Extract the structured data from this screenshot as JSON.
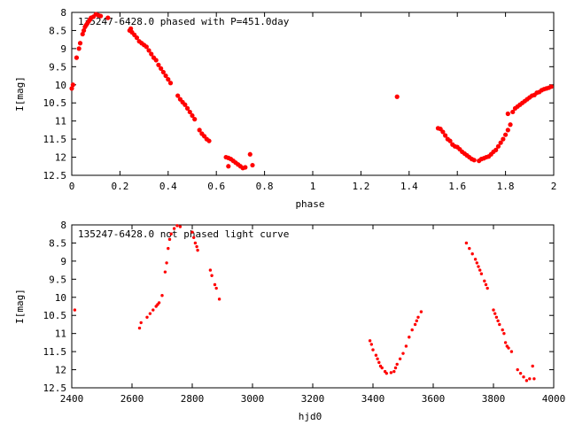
{
  "chart_data": [
    {
      "type": "scatter",
      "title": "135247-6428.0 phased with P=451.0day",
      "xlabel": "phase",
      "ylabel": "I[mag]",
      "xlim": [
        0,
        2
      ],
      "ylim": [
        12.5,
        8
      ],
      "x_ticks": [
        "0",
        "0.2",
        "0.4",
        "0.6",
        "0.8",
        "1",
        "1.2",
        "1.4",
        "1.6",
        "1.8",
        "2"
      ],
      "y_ticks": [
        "8",
        "8.5",
        "9",
        "9.5",
        "10",
        "10.5",
        "11",
        "11.5",
        "12",
        "12.5"
      ],
      "grid": false,
      "marker_color": "#ff0000",
      "points": [
        [
          0.0,
          10.1
        ],
        [
          0.005,
          10.0
        ],
        [
          0.02,
          9.25
        ],
        [
          0.03,
          9.0
        ],
        [
          0.035,
          8.85
        ],
        [
          0.045,
          8.6
        ],
        [
          0.05,
          8.5
        ],
        [
          0.055,
          8.4
        ],
        [
          0.06,
          8.35
        ],
        [
          0.065,
          8.3
        ],
        [
          0.07,
          8.25
        ],
        [
          0.075,
          8.2
        ],
        [
          0.08,
          8.15
        ],
        [
          0.09,
          8.12
        ],
        [
          0.1,
          8.05
        ],
        [
          0.11,
          8.08
        ],
        [
          0.12,
          8.1
        ],
        [
          0.15,
          8.15
        ],
        [
          0.24,
          8.5
        ],
        [
          0.245,
          8.45
        ],
        [
          0.25,
          8.55
        ],
        [
          0.26,
          8.62
        ],
        [
          0.27,
          8.7
        ],
        [
          0.28,
          8.8
        ],
        [
          0.29,
          8.85
        ],
        [
          0.3,
          8.9
        ],
        [
          0.31,
          8.95
        ],
        [
          0.32,
          9.05
        ],
        [
          0.33,
          9.15
        ],
        [
          0.34,
          9.25
        ],
        [
          0.35,
          9.32
        ],
        [
          0.36,
          9.45
        ],
        [
          0.37,
          9.55
        ],
        [
          0.38,
          9.65
        ],
        [
          0.39,
          9.75
        ],
        [
          0.4,
          9.85
        ],
        [
          0.41,
          9.95
        ],
        [
          0.44,
          10.3
        ],
        [
          0.45,
          10.4
        ],
        [
          0.46,
          10.48
        ],
        [
          0.47,
          10.55
        ],
        [
          0.48,
          10.65
        ],
        [
          0.49,
          10.75
        ],
        [
          0.5,
          10.85
        ],
        [
          0.51,
          10.95
        ],
        [
          0.53,
          11.25
        ],
        [
          0.54,
          11.35
        ],
        [
          0.55,
          11.42
        ],
        [
          0.56,
          11.5
        ],
        [
          0.57,
          11.55
        ],
        [
          0.64,
          12.0
        ],
        [
          0.65,
          12.02
        ],
        [
          0.66,
          12.05
        ],
        [
          0.67,
          12.1
        ],
        [
          0.68,
          12.15
        ],
        [
          0.69,
          12.2
        ],
        [
          0.7,
          12.25
        ],
        [
          0.71,
          12.3
        ],
        [
          0.72,
          12.28
        ],
        [
          0.74,
          11.92
        ],
        [
          0.75,
          12.22
        ],
        [
          0.65,
          12.25
        ],
        [
          1.35,
          10.33
        ],
        [
          1.52,
          11.2
        ],
        [
          1.53,
          11.22
        ],
        [
          1.54,
          11.3
        ],
        [
          1.55,
          11.4
        ],
        [
          1.56,
          11.5
        ],
        [
          1.57,
          11.55
        ],
        [
          1.58,
          11.65
        ],
        [
          1.59,
          11.7
        ],
        [
          1.6,
          11.72
        ],
        [
          1.61,
          11.78
        ],
        [
          1.62,
          11.85
        ],
        [
          1.63,
          11.9
        ],
        [
          1.64,
          11.95
        ],
        [
          1.65,
          12.0
        ],
        [
          1.66,
          12.05
        ],
        [
          1.67,
          12.08
        ],
        [
          1.69,
          12.1
        ],
        [
          1.7,
          12.05
        ],
        [
          1.71,
          12.03
        ],
        [
          1.72,
          12.0
        ],
        [
          1.73,
          11.98
        ],
        [
          1.74,
          11.92
        ],
        [
          1.75,
          11.85
        ],
        [
          1.76,
          11.8
        ],
        [
          1.77,
          11.7
        ],
        [
          1.78,
          11.6
        ],
        [
          1.79,
          11.5
        ],
        [
          1.8,
          11.38
        ],
        [
          1.81,
          11.25
        ],
        [
          1.82,
          11.1
        ],
        [
          1.81,
          10.8
        ],
        [
          1.83,
          10.75
        ],
        [
          1.84,
          10.65
        ],
        [
          1.85,
          10.6
        ],
        [
          1.86,
          10.55
        ],
        [
          1.87,
          10.5
        ],
        [
          1.88,
          10.45
        ],
        [
          1.89,
          10.4
        ],
        [
          1.9,
          10.35
        ],
        [
          1.91,
          10.3
        ],
        [
          1.92,
          10.28
        ],
        [
          1.93,
          10.22
        ],
        [
          1.94,
          10.2
        ],
        [
          1.95,
          10.15
        ],
        [
          1.96,
          10.12
        ],
        [
          1.97,
          10.1
        ],
        [
          1.98,
          10.08
        ],
        [
          1.99,
          10.05
        ]
      ]
    },
    {
      "type": "scatter",
      "title": "135247-6428.0 not phased light curve",
      "xlabel": "hjd0",
      "ylabel": "I[mag]",
      "xlim": [
        2400,
        4000
      ],
      "ylim": [
        12.5,
        8
      ],
      "x_ticks": [
        "2400",
        "2600",
        "2800",
        "3000",
        "3200",
        "3400",
        "3600",
        "3800",
        "4000"
      ],
      "y_ticks": [
        "8",
        "8.5",
        "9",
        "9.5",
        "10",
        "10.5",
        "11",
        "11.5",
        "12",
        "12.5"
      ],
      "grid": false,
      "marker_color": "#ff0000",
      "points": [
        [
          2410,
          10.35
        ],
        [
          2625,
          10.85
        ],
        [
          2630,
          10.7
        ],
        [
          2650,
          10.55
        ],
        [
          2660,
          10.45
        ],
        [
          2670,
          10.35
        ],
        [
          2680,
          10.25
        ],
        [
          2685,
          10.2
        ],
        [
          2690,
          10.15
        ],
        [
          2700,
          9.95
        ],
        [
          2710,
          9.3
        ],
        [
          2715,
          9.05
        ],
        [
          2720,
          8.65
        ],
        [
          2725,
          8.4
        ],
        [
          2730,
          8.25
        ],
        [
          2740,
          8.1
        ],
        [
          2750,
          8.02
        ],
        [
          2760,
          8.05
        ],
        [
          2800,
          8.2
        ],
        [
          2805,
          8.35
        ],
        [
          2810,
          8.5
        ],
        [
          2815,
          8.6
        ],
        [
          2818,
          8.7
        ],
        [
          2860,
          9.25
        ],
        [
          2865,
          9.4
        ],
        [
          2875,
          9.65
        ],
        [
          2880,
          9.75
        ],
        [
          2890,
          10.05
        ],
        [
          3390,
          11.2
        ],
        [
          3395,
          11.3
        ],
        [
          3400,
          11.45
        ],
        [
          3410,
          11.6
        ],
        [
          3415,
          11.7
        ],
        [
          3420,
          11.8
        ],
        [
          3425,
          11.9
        ],
        [
          3430,
          11.95
        ],
        [
          3440,
          12.05
        ],
        [
          3445,
          12.1
        ],
        [
          3460,
          12.08
        ],
        [
          3470,
          12.05
        ],
        [
          3475,
          11.95
        ],
        [
          3480,
          11.85
        ],
        [
          3490,
          11.7
        ],
        [
          3500,
          11.55
        ],
        [
          3510,
          11.35
        ],
        [
          3520,
          11.1
        ],
        [
          3530,
          10.9
        ],
        [
          3540,
          10.75
        ],
        [
          3545,
          10.65
        ],
        [
          3550,
          10.55
        ],
        [
          3560,
          10.4
        ],
        [
          3710,
          8.5
        ],
        [
          3720,
          8.65
        ],
        [
          3730,
          8.8
        ],
        [
          3740,
          8.95
        ],
        [
          3745,
          9.05
        ],
        [
          3750,
          9.15
        ],
        [
          3755,
          9.25
        ],
        [
          3760,
          9.35
        ],
        [
          3770,
          9.55
        ],
        [
          3775,
          9.65
        ],
        [
          3780,
          9.75
        ],
        [
          3800,
          10.35
        ],
        [
          3805,
          10.45
        ],
        [
          3810,
          10.55
        ],
        [
          3815,
          10.65
        ],
        [
          3820,
          10.75
        ],
        [
          3830,
          10.9
        ],
        [
          3835,
          11.0
        ],
        [
          3840,
          11.25
        ],
        [
          3845,
          11.35
        ],
        [
          3850,
          11.4
        ],
        [
          3860,
          11.5
        ],
        [
          3880,
          12.0
        ],
        [
          3890,
          12.1
        ],
        [
          3900,
          12.2
        ],
        [
          3910,
          12.3
        ],
        [
          3920,
          12.25
        ],
        [
          3930,
          11.9
        ],
        [
          3935,
          12.25
        ]
      ]
    }
  ]
}
